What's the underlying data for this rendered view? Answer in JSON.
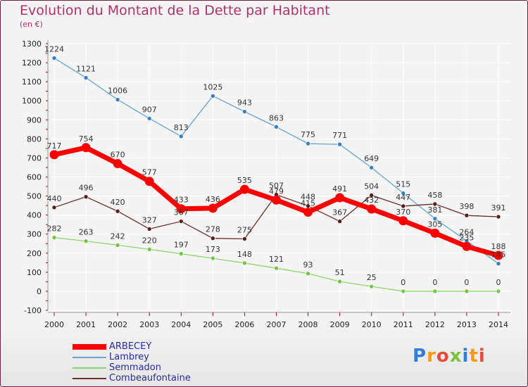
{
  "chart_data": {
    "type": "line",
    "title": "Evolution du Montant de la Dette par Habitant",
    "subtitle": "(en €)",
    "x": [
      "2000",
      "2001",
      "2002",
      "2003",
      "2004",
      "2005",
      "2006",
      "2007",
      "2008",
      "2009",
      "2010",
      "2011",
      "2012",
      "2013",
      "2014"
    ],
    "ylim": [
      -100,
      1300
    ],
    "yticks": [
      -100,
      0,
      100,
      200,
      300,
      400,
      500,
      600,
      700,
      800,
      900,
      1000,
      1100,
      1200,
      1300
    ],
    "grid": true,
    "legend_position": "bottom-left",
    "series": [
      {
        "name": "Lambrey",
        "color": "#6aa3d6",
        "marker": "#3a7fc0",
        "values": [
          1224,
          1121,
          1006,
          907,
          813,
          1025,
          943,
          863,
          775,
          771,
          649,
          515,
          381,
          264,
          145
        ],
        "labels": [
          "1224",
          "1121",
          "1006",
          "907",
          "813",
          "1025",
          "943",
          "863",
          "775",
          "771",
          "649",
          "515",
          "381",
          "264",
          "145"
        ]
      },
      {
        "name": "Combeaufontaine",
        "color": "#6e2b2b",
        "marker": "#5a1d1d",
        "values": [
          440,
          496,
          420,
          327,
          367,
          278,
          275,
          507,
          448,
          367,
          504,
          447,
          458,
          398,
          391
        ],
        "labels": [
          "440",
          "496",
          "420",
          "327",
          "367",
          "278",
          "275",
          "507",
          "448",
          "367",
          "504",
          "447",
          "458",
          "398",
          "391"
        ]
      },
      {
        "name": "Semmadon",
        "color": "#8fd46b",
        "marker": "#74c44a",
        "values": [
          282,
          263,
          242,
          220,
          197,
          173,
          148,
          121,
          93,
          51,
          25,
          0,
          0,
          0,
          0
        ],
        "labels": [
          "282",
          "263",
          "242",
          "220",
          "197",
          "173",
          "148",
          "121",
          "93",
          "51",
          "25",
          "0",
          "0",
          "0",
          "0"
        ]
      },
      {
        "name": "ARBECEY",
        "color": "#ff0000",
        "marker": "#ff0000",
        "values": [
          717,
          754,
          670,
          577,
          433,
          436,
          535,
          479,
          415,
          491,
          432,
          370,
          305,
          235,
          188
        ],
        "labels": [
          "717",
          "754",
          "670",
          "577",
          "433",
          "436",
          "535",
          "479",
          "415",
          "491",
          "432",
          "370",
          "305",
          "235",
          "188"
        ]
      }
    ],
    "legend": [
      "ARBECEY",
      "Lambrey",
      "Semmadon",
      "Combeaufontaine"
    ]
  },
  "brand": {
    "logo_text": "Proxiti"
  }
}
